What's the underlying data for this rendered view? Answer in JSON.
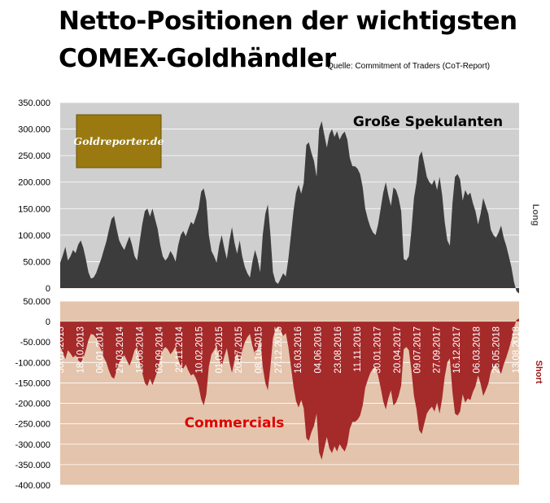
{
  "title_line1": "Netto-Positionen der wichtigsten",
  "title_line2": "COMEX-Goldhändler",
  "source": "Quelle: Commitment of Traders (CoT-Report)",
  "logo_text": "Goldreporter.de",
  "colors": {
    "top_bg": "#cfcfcf",
    "top_series": "#3c3c3c",
    "bottom_bg": "#e4c4ac",
    "bottom_series": "#a52a2a",
    "short_label": "#a01818",
    "commercials_label": "#e00000",
    "logo_bg": "#9a7a10"
  },
  "chart_data": [
    {
      "type": "area",
      "title": "Große Spekulanten",
      "side_label": "Long",
      "ylim": [
        0,
        350000
      ],
      "y_ticks": [
        "350.000",
        "300.000",
        "250.000",
        "200.000",
        "150.000",
        "100.000",
        "50.000",
        "0"
      ],
      "y_tick_values": [
        350000,
        300000,
        250000,
        200000,
        150000,
        100000,
        50000,
        0
      ],
      "values": [
        48000,
        62000,
        78000,
        52000,
        60000,
        72000,
        66000,
        82000,
        90000,
        76000,
        55000,
        30000,
        18000,
        20000,
        28000,
        42000,
        55000,
        72000,
        88000,
        110000,
        130000,
        136000,
        112000,
        90000,
        80000,
        72000,
        85000,
        98000,
        82000,
        60000,
        52000,
        88000,
        120000,
        145000,
        150000,
        135000,
        150000,
        130000,
        112000,
        82000,
        60000,
        52000,
        58000,
        70000,
        62000,
        50000,
        80000,
        100000,
        108000,
        98000,
        112000,
        125000,
        120000,
        135000,
        150000,
        182000,
        188000,
        165000,
        100000,
        70000,
        60000,
        48000,
        80000,
        100000,
        75000,
        55000,
        90000,
        115000,
        85000,
        65000,
        90000,
        60000,
        40000,
        28000,
        20000,
        50000,
        72000,
        55000,
        30000,
        100000,
        140000,
        158000,
        100000,
        30000,
        12000,
        8000,
        18000,
        28000,
        22000,
        55000,
        100000,
        145000,
        180000,
        195000,
        178000,
        198000,
        270000,
        275000,
        255000,
        240000,
        210000,
        300000,
        315000,
        290000,
        265000,
        290000,
        300000,
        285000,
        296000,
        280000,
        290000,
        295000,
        280000,
        245000,
        230000,
        230000,
        225000,
        215000,
        190000,
        150000,
        130000,
        115000,
        105000,
        100000,
        120000,
        150000,
        180000,
        200000,
        175000,
        155000,
        190000,
        185000,
        170000,
        145000,
        55000,
        52000,
        60000,
        110000,
        170000,
        200000,
        248000,
        258000,
        235000,
        210000,
        200000,
        195000,
        205000,
        185000,
        210000,
        175000,
        125000,
        90000,
        80000,
        160000,
        210000,
        215000,
        205000,
        165000,
        185000,
        175000,
        180000,
        160000,
        145000,
        120000,
        140000,
        170000,
        155000,
        140000,
        110000,
        100000,
        95000,
        105000,
        118000,
        95000,
        80000,
        60000,
        40000,
        12000,
        -6000,
        -10000
      ]
    },
    {
      "type": "area",
      "title": "Commercials",
      "side_label": "Short",
      "ylim": [
        -400000,
        50000
      ],
      "y_ticks": [
        "50.000",
        "0",
        "-50.000",
        "-100.000",
        "-150.000",
        "-200.000",
        "-250.000",
        "-300.000",
        "-350.000",
        "-400.000"
      ],
      "y_tick_values": [
        50000,
        0,
        -50000,
        -100000,
        -150000,
        -200000,
        -250000,
        -300000,
        -350000,
        -400000
      ],
      "x_tick_labels": [
        "30.07.2013",
        "18.10.2013",
        "06.01.2014",
        "27.03.2014",
        "15.06.2014",
        "03.09.2014",
        "22.11.2014",
        "10.02.2015",
        "01.05.2015",
        "20.07.2015",
        "08.10.2015",
        "27.12.2015",
        "16.03.2016",
        "04.06.2016",
        "23.08.2016",
        "11.11.2016",
        "30.01.2017",
        "20.04.2017",
        "09.07.2017",
        "27.09.2017",
        "16.12.2017",
        "06.03.2018",
        "25.05.2018",
        "13.08.2018"
      ],
      "values": [
        -60000,
        -75000,
        -92000,
        -70000,
        -78000,
        -88000,
        -82000,
        -95000,
        -100000,
        -90000,
        -70000,
        -45000,
        -30000,
        -32000,
        -40000,
        -55000,
        -70000,
        -88000,
        -100000,
        -120000,
        -135000,
        -140000,
        -120000,
        -100000,
        -90000,
        -82000,
        -95000,
        -108000,
        -92000,
        -70000,
        -62000,
        -98000,
        -125000,
        -150000,
        -158000,
        -140000,
        -155000,
        -138000,
        -120000,
        -90000,
        -70000,
        -62000,
        -68000,
        -80000,
        -72000,
        -60000,
        -90000,
        -110000,
        -115000,
        -105000,
        -120000,
        -132000,
        -128000,
        -140000,
        -158000,
        -190000,
        -205000,
        -178000,
        -110000,
        -80000,
        -70000,
        -58000,
        -90000,
        -110000,
        -85000,
        -65000,
        -100000,
        -125000,
        -95000,
        -75000,
        -100000,
        -70000,
        -50000,
        -38000,
        -30000,
        -60000,
        -82000,
        -65000,
        -40000,
        -110000,
        -150000,
        -168000,
        -110000,
        -40000,
        -18000,
        -12000,
        -22000,
        -35000,
        -28000,
        -62000,
        -110000,
        -158000,
        -195000,
        -210000,
        -192000,
        -212000,
        -285000,
        -292000,
        -270000,
        -255000,
        -225000,
        -320000,
        -338000,
        -310000,
        -282000,
        -310000,
        -322000,
        -305000,
        -318000,
        -300000,
        -310000,
        -318000,
        -300000,
        -262000,
        -245000,
        -245000,
        -240000,
        -230000,
        -205000,
        -162000,
        -142000,
        -125000,
        -115000,
        -110000,
        -132000,
        -162000,
        -195000,
        -215000,
        -188000,
        -168000,
        -205000,
        -198000,
        -182000,
        -156000,
        -68000,
        -62000,
        -70000,
        -120000,
        -182000,
        -215000,
        -265000,
        -275000,
        -250000,
        -225000,
        -215000,
        -208000,
        -220000,
        -198000,
        -225000,
        -188000,
        -135000,
        -100000,
        -90000,
        -172000,
        -225000,
        -230000,
        -220000,
        -178000,
        -198000,
        -188000,
        -192000,
        -172000,
        -158000,
        -132000,
        -152000,
        -182000,
        -168000,
        -152000,
        -122000,
        -110000,
        -105000,
        -115000,
        -128000,
        -105000,
        -88000,
        -68000,
        -45000,
        -15000,
        4000,
        8000
      ]
    }
  ]
}
